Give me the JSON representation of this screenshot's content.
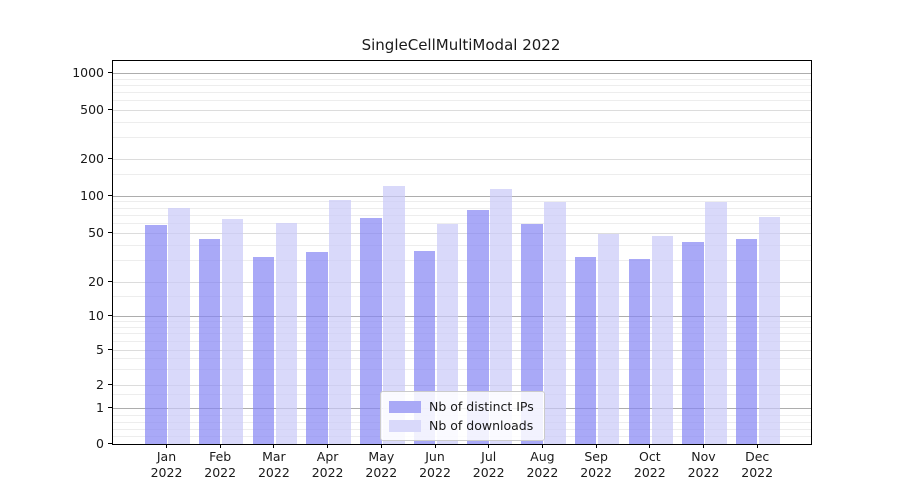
{
  "chart_data": {
    "type": "bar",
    "title": "SingleCellMultiModal 2022",
    "year": "2022",
    "categories": [
      "Jan",
      "Feb",
      "Mar",
      "Apr",
      "May",
      "Jun",
      "Jul",
      "Aug",
      "Sep",
      "Oct",
      "Nov",
      "Dec"
    ],
    "series": [
      {
        "name": "Nb of distinct IPs",
        "color": "#a9a9f6",
        "fill": "rgba(132,132,244,0.7)",
        "values": [
          58,
          45,
          32,
          35,
          66,
          36,
          77,
          59,
          32,
          31,
          42,
          45
        ]
      },
      {
        "name": "Nb of downloads",
        "color": "#d9d9fa",
        "fill": "rgba(201,201,248,0.7)",
        "values": [
          80,
          65,
          60,
          93,
          120,
          59,
          114,
          90,
          49,
          47,
          89,
          68
        ]
      }
    ],
    "y_ticks": [
      0,
      1,
      2,
      5,
      10,
      20,
      50,
      100,
      200,
      500,
      1000
    ],
    "y_minor_ticks": [
      0.2,
      0.4,
      0.6,
      0.8,
      1.5,
      3,
      4,
      6,
      7,
      8,
      9,
      15,
      30,
      40,
      60,
      70,
      80,
      90,
      150,
      300,
      400,
      600,
      700,
      800,
      900
    ],
    "y_decade_ticks": [
      1,
      10,
      100,
      1000
    ],
    "y_scale": "symlog",
    "ylim": [
      0,
      1300
    ],
    "grid": true,
    "legend_position": "inside lower center",
    "xlabel": "",
    "ylabel": ""
  },
  "colors": {
    "background": "#ffffff",
    "spine": "#000000",
    "text": "#1a1a1a",
    "decade_gridline": "#adadad",
    "major_gridline": "#dcdcdc",
    "minor_gridline": "#ededed"
  }
}
